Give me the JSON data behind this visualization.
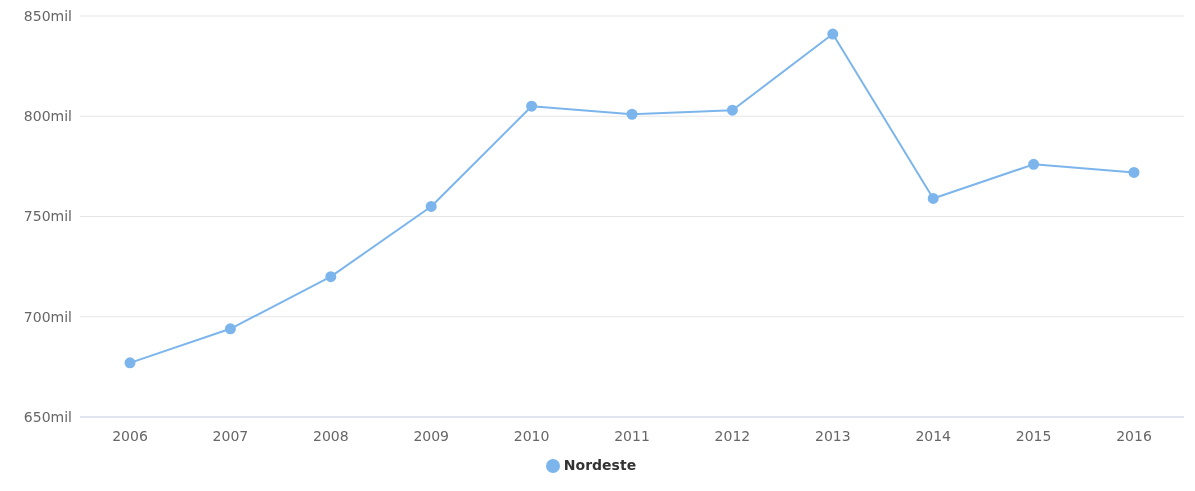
{
  "chart_data": {
    "type": "line",
    "categories": [
      "2006",
      "2007",
      "2008",
      "2009",
      "2010",
      "2011",
      "2012",
      "2013",
      "2014",
      "2015",
      "2016"
    ],
    "series": [
      {
        "name": "Nordeste",
        "color": "#7cb5ec",
        "values": [
          677,
          694,
          720,
          755,
          805,
          801,
          803,
          841,
          759,
          776,
          772
        ]
      }
    ],
    "ylim": [
      650,
      850
    ],
    "yticks": [
      {
        "value": 650,
        "label": "650mil"
      },
      {
        "value": 700,
        "label": "700mil"
      },
      {
        "value": 750,
        "label": "750mil"
      },
      {
        "value": 800,
        "label": "800mil"
      },
      {
        "value": 850,
        "label": "850mil"
      }
    ],
    "grid": "y",
    "legend": "bottom",
    "marker": "circle",
    "line_style": "solid"
  }
}
